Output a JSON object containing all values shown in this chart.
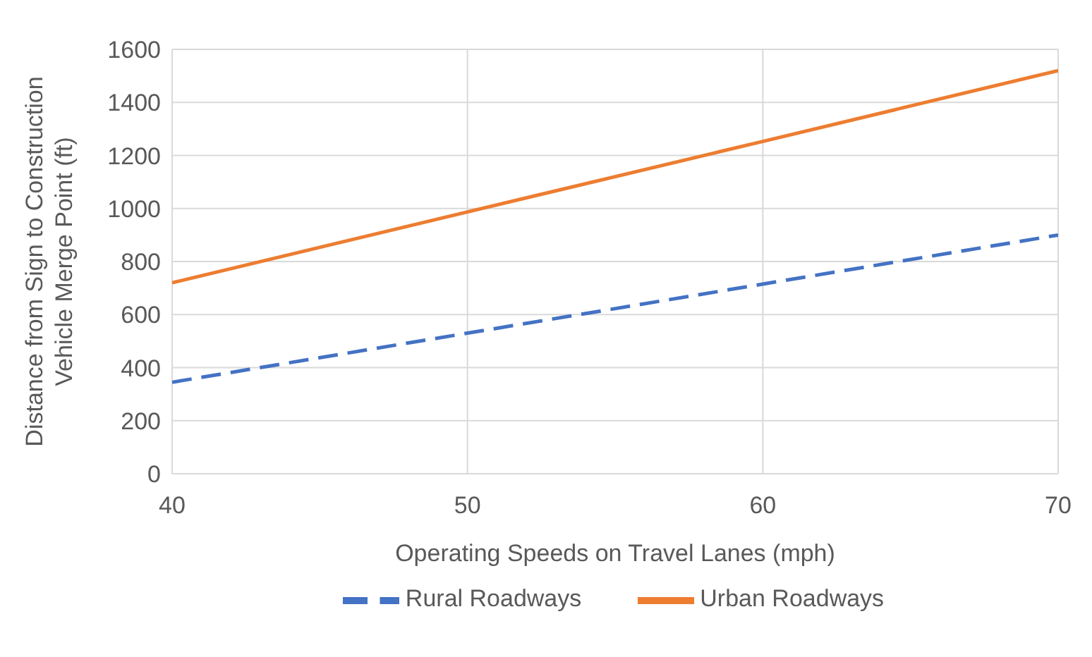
{
  "chart_data": {
    "type": "line",
    "xlabel": "Operating Speeds on Travel Lanes (mph)",
    "ylabel": "Distance from Sign to Construction Vehicle Merge Point (ft)",
    "x": [
      40,
      50,
      60,
      70
    ],
    "series": [
      {
        "name": "Rural Roadways",
        "color": "#4472c4",
        "line_style": "dashed",
        "values": [
          345,
          530,
          715,
          900
        ]
      },
      {
        "name": "Urban Roadways",
        "color": "#ed7d31",
        "line_style": "solid",
        "values": [
          720,
          987,
          1253,
          1520
        ]
      }
    ],
    "xlim": [
      40,
      70
    ],
    "xticks": [
      40,
      50,
      60,
      70
    ],
    "ylim": [
      0,
      1600
    ],
    "yticks": [
      0,
      200,
      400,
      600,
      800,
      1000,
      1200,
      1400,
      1600
    ],
    "grid": true,
    "legend": "bottom",
    "marker": "none"
  }
}
